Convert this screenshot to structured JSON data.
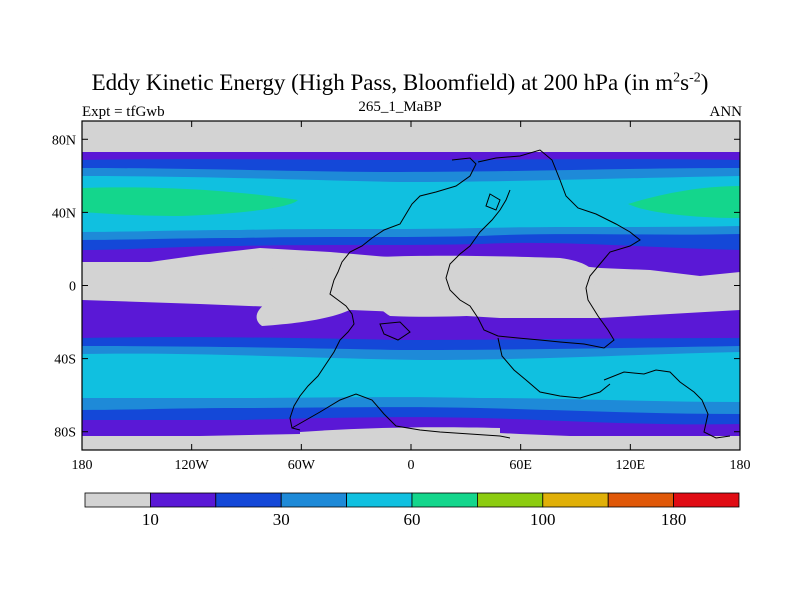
{
  "title": {
    "main": "Eddy Kinetic Energy (High Pass, Bloomfield) at 200 hPa (in m",
    "sup1": "2",
    "mid": "s",
    "sup2": "-2",
    "end": ")"
  },
  "left_label": "Expt = tfGwb",
  "center_label": "265_1_MaBP",
  "right_label": "ANN",
  "map": {
    "projection": "cylindrical-equidistant",
    "lon_range": [
      -180,
      180
    ],
    "lat_range": [
      -90,
      90
    ],
    "x_ticks": [
      {
        "value": -180,
        "label": "180"
      },
      {
        "value": -120,
        "label": "120W"
      },
      {
        "value": -60,
        "label": "60W"
      },
      {
        "value": 0,
        "label": "0"
      },
      {
        "value": 60,
        "label": "60E"
      },
      {
        "value": 120,
        "label": "120E"
      },
      {
        "value": 180,
        "label": "180"
      }
    ],
    "y_ticks": [
      {
        "value": 80,
        "label": "80N"
      },
      {
        "value": 40,
        "label": "40N"
      },
      {
        "value": 0,
        "label": "0"
      },
      {
        "value": -40,
        "label": "40S"
      },
      {
        "value": -80,
        "label": "80S"
      }
    ]
  },
  "colorbar": {
    "colors": [
      "#d3d3d3",
      "#5a18d6",
      "#1448d8",
      "#1e8ad8",
      "#10c0e0",
      "#14d68c",
      "#8ccc10",
      "#e0b008",
      "#e05808",
      "#e00c14"
    ],
    "labels": [
      {
        "text": "10",
        "boundary": 1
      },
      {
        "text": "30",
        "boundary": 3
      },
      {
        "text": "60",
        "boundary": 5
      },
      {
        "text": "100",
        "boundary": 7
      },
      {
        "text": "180",
        "boundary": 9
      }
    ]
  }
}
